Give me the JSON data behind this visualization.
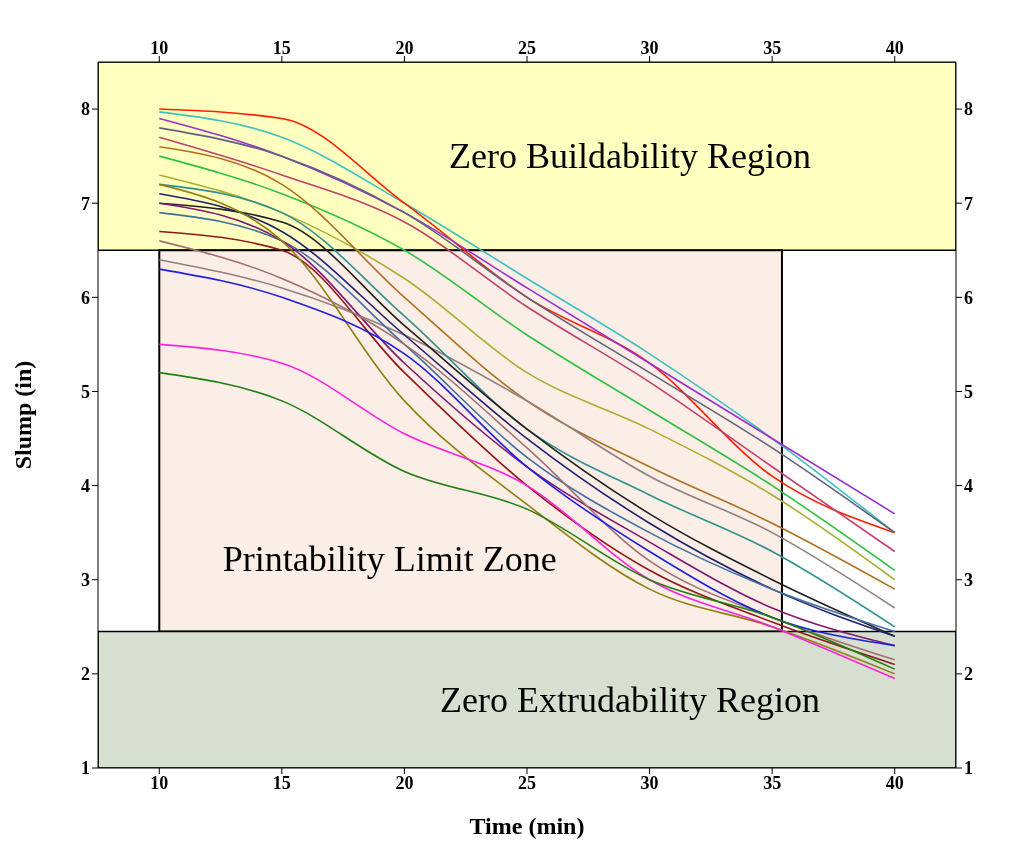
{
  "chart_data": {
    "type": "line",
    "xlabel": "Time (min)",
    "ylabel": "Slump (in)",
    "xlim": [
      7.5,
      42.5
    ],
    "xticks": [
      10,
      15,
      20,
      25,
      30,
      35,
      40
    ],
    "x2lim": [
      7.5,
      42.5
    ],
    "x2ticks": [
      10,
      15,
      20,
      25,
      30,
      35,
      40
    ],
    "ylim": [
      1,
      8.5
    ],
    "yticks": [
      1,
      2,
      3,
      4,
      5,
      6,
      7,
      8
    ],
    "y2lim": [
      1,
      8.5
    ],
    "y2ticks": [
      1,
      2,
      3,
      4,
      5,
      6,
      7,
      8
    ],
    "grid": false,
    "legend": false,
    "x": [
      10,
      15,
      20,
      25,
      30,
      35,
      40
    ],
    "series": [
      {
        "color": "#40c0c0",
        "values": [
          7.97,
          7.7,
          7.0,
          6.2,
          5.4,
          4.5,
          3.5
        ]
      },
      {
        "color": "#ff2000",
        "values": [
          8.0,
          7.9,
          7.0,
          6.0,
          5.3,
          4.1,
          3.5
        ]
      },
      {
        "color": "#9a30d0",
        "values": [
          7.9,
          7.5,
          6.9,
          6.1,
          5.3,
          4.5,
          3.7
        ]
      },
      {
        "color": "#606080",
        "values": [
          7.8,
          7.5,
          6.9,
          6.0,
          5.2,
          4.4,
          3.5
        ]
      },
      {
        "color": "#c04070",
        "values": [
          7.7,
          7.3,
          6.8,
          5.9,
          5.1,
          4.2,
          3.3
        ]
      },
      {
        "color": "#30c040",
        "values": [
          7.5,
          7.1,
          6.5,
          5.6,
          4.8,
          4.0,
          3.1
        ]
      },
      {
        "color": "#a8b030",
        "values": [
          7.3,
          6.9,
          6.2,
          5.2,
          4.6,
          3.9,
          3.0
        ]
      },
      {
        "color": "#b07020",
        "values": [
          7.6,
          7.2,
          6.0,
          4.9,
          4.2,
          3.6,
          2.9
        ]
      },
      {
        "color": "#908080",
        "values": [
          6.4,
          6.1,
          5.6,
          4.9,
          4.1,
          3.5,
          2.7
        ]
      },
      {
        "color": "#309090",
        "values": [
          7.2,
          6.9,
          5.8,
          4.6,
          3.9,
          3.3,
          2.5
        ]
      },
      {
        "color": "#202020",
        "values": [
          7.0,
          6.8,
          5.7,
          4.6,
          3.7,
          3.0,
          2.4
        ]
      },
      {
        "color": "#202070",
        "values": [
          7.1,
          6.7,
          5.6,
          4.5,
          3.6,
          2.9,
          2.4
        ]
      },
      {
        "color": "#4070a0",
        "values": [
          6.9,
          6.6,
          5.5,
          4.3,
          3.5,
          2.9,
          2.45
        ]
      },
      {
        "color": "#801870",
        "values": [
          7.0,
          6.6,
          5.3,
          4.2,
          3.4,
          2.7,
          2.3
        ]
      },
      {
        "color": "#901818",
        "values": [
          6.7,
          6.5,
          5.2,
          4.0,
          3.1,
          2.55,
          2.1
        ]
      },
      {
        "color": "#908010",
        "values": [
          7.2,
          6.6,
          4.9,
          3.8,
          2.9,
          2.5,
          2.0
        ]
      },
      {
        "color": "#a07070",
        "values": [
          6.6,
          6.2,
          5.5,
          4.4,
          3.2,
          2.6,
          2.15
        ]
      },
      {
        "color": "#2020e0",
        "values": [
          6.3,
          6.0,
          5.4,
          4.2,
          3.3,
          2.6,
          2.3
        ]
      },
      {
        "color": "#ff20e0",
        "values": [
          5.5,
          5.3,
          4.55,
          4.0,
          3.0,
          2.5,
          1.95
        ]
      },
      {
        "color": "#208010",
        "values": [
          5.2,
          4.9,
          4.15,
          3.75,
          3.0,
          2.6,
          2.05
        ]
      }
    ],
    "bands": [
      {
        "axis": "y",
        "from": 6.5,
        "to": 8.5,
        "label": "Zero Buildability Region",
        "color": "#ffffc0"
      },
      {
        "axis": "x",
        "from": 10,
        "to": 35.4,
        "label": "Printability Limit Zone",
        "color": "#fbeee6"
      },
      {
        "axis": "y",
        "from": 1,
        "to": 2.45,
        "label": "Zero Extrudability Region",
        "color": "#d6dfd0"
      }
    ]
  }
}
